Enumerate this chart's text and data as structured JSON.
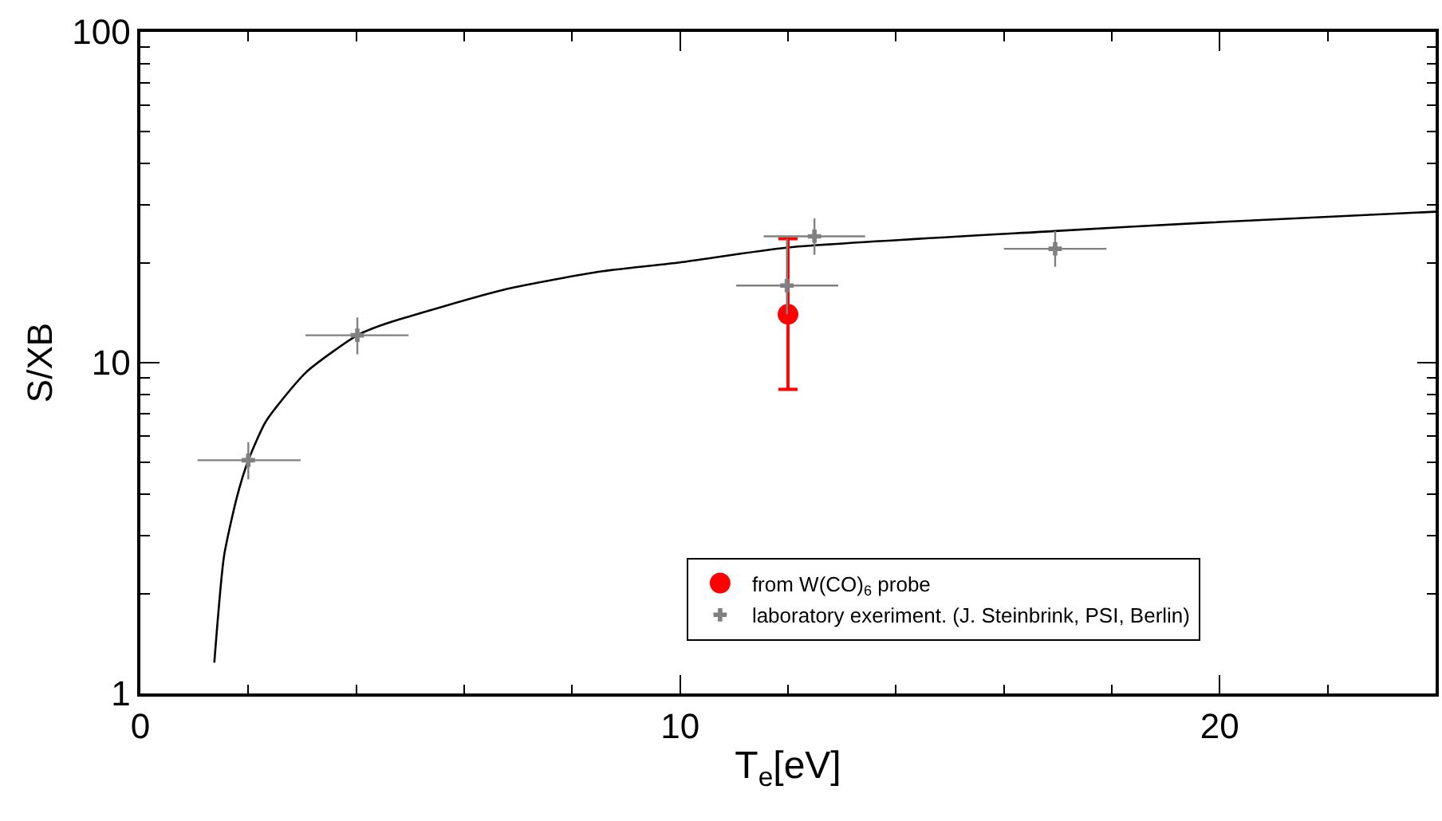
{
  "chart_data": {
    "type": "scatter",
    "xlabel": "T$_{e}$[eV]",
    "ylabel": "S/XB",
    "log": "y",
    "legend": "bottom",
    "xlim": [
      0,
      24
    ],
    "ylim": [
      1,
      100
    ],
    "xticks": [
      0,
      {
        "value": 2,
        "label": null
      },
      {
        "value": 4,
        "label": null
      },
      {
        "value": 6,
        "label": null
      },
      {
        "value": 8,
        "label": null
      },
      10,
      {
        "value": 12,
        "label": null
      },
      {
        "value": 14,
        "label": null
      },
      {
        "value": 16,
        "label": null
      },
      {
        "value": 18,
        "label": null
      },
      20,
      {
        "value": 22,
        "label": null
      }
    ],
    "yticks": [
      1,
      {
        "value": 2,
        "label": null
      },
      {
        "value": 3,
        "label": null
      },
      {
        "value": 4,
        "label": null
      },
      {
        "value": 5,
        "label": null
      },
      {
        "value": 6,
        "label": null
      },
      {
        "value": 7,
        "label": null
      },
      {
        "value": 8,
        "label": null
      },
      {
        "value": 9,
        "label": null
      },
      10,
      {
        "value": 20,
        "label": null
      },
      {
        "value": 30,
        "label": null
      },
      {
        "value": 40,
        "label": null
      },
      {
        "value": 50,
        "label": null
      },
      {
        "value": 60,
        "label": null
      },
      {
        "value": 70,
        "label": null
      },
      {
        "value": 80,
        "label": null
      },
      {
        "value": 90,
        "label": null
      },
      100
    ],
    "series": [
      {
        "type": "line",
        "color": "#000000",
        "line_style": "solid",
        "marker": "none",
        "x": [
          1.37,
          1.55,
          1.79,
          2.0,
          2.33,
          3.07,
          4.02,
          4.54,
          6.79,
          8.56,
          10,
          12,
          16.94,
          19.74,
          24
        ],
        "values": [
          1.24,
          2.6,
          3.93,
          5.07,
          6.66,
          9.35,
          12.1,
          13.1,
          16.7,
          18.9,
          20.1,
          22.3,
          25.0,
          26.5,
          28.6
        ]
      },
      {
        "name": "from W(CO)$_{6}$ probe",
        "color": "#ff0000",
        "marker": "circle",
        "x": [
          12
        ],
        "values": [
          14.0
        ],
        "errors": [
          [
            8.3,
            23.7
          ]
        ]
      },
      {
        "name": "laboratory exeriment. (J. Steinbrink, PSI, Berlin)",
        "color": "#808080",
        "marker": "cross",
        "x": [
          2.0,
          4.02,
          11.98,
          12.49,
          16.95
        ],
        "values": [
          5.07,
          12.1,
          17.1,
          24.1,
          22.1
        ],
        "errors": [
          [
            4.44,
            5.75
          ],
          [
            10.6,
            13.7
          ],
          [
            14.0,
            23.7
          ],
          [
            21.2,
            27.3
          ],
          [
            19.5,
            25.0
          ]
        ],
        "xerrors": [
          [
            1.06,
            2.97
          ],
          [
            3.06,
            4.97
          ],
          [
            11.04,
            12.93
          ],
          [
            11.55,
            13.43
          ],
          [
            16.0,
            17.9
          ]
        ]
      }
    ]
  }
}
